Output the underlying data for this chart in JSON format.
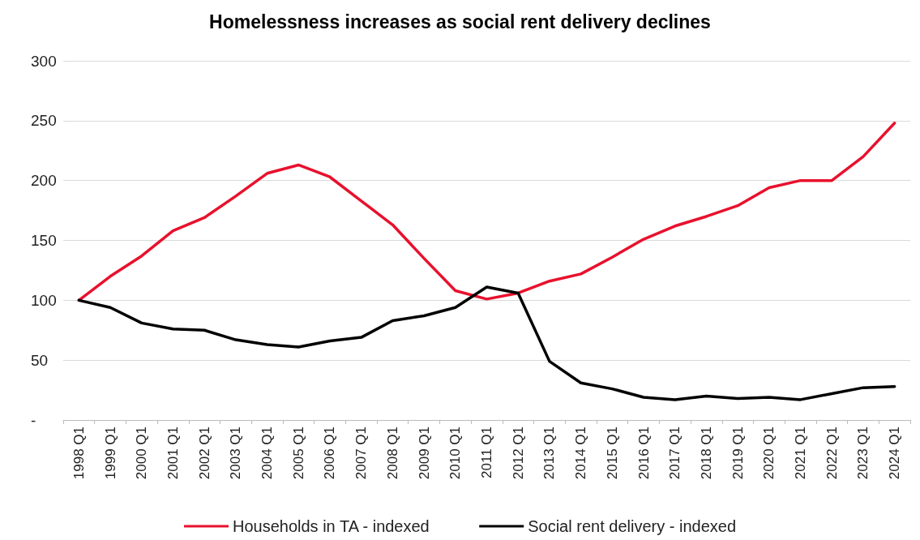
{
  "chart_data": {
    "type": "line",
    "title": "Homelessness increases as social rent delivery declines",
    "categories": [
      "1998 Q1",
      "1999 Q1",
      "2000 Q1",
      "2001 Q1",
      "2002 Q1",
      "2003 Q1",
      "2004 Q1",
      "2005 Q1",
      "2006 Q1",
      "2007 Q1",
      "2008 Q1",
      "2009 Q1",
      "2010 Q1",
      "2011 Q1",
      "2012 Q1",
      "2013 Q1",
      "2014 Q1",
      "2015 Q1",
      "2016 Q1",
      "2017 Q1",
      "2018 Q1",
      "2019 Q1",
      "2020 Q1",
      "2021 Q1",
      "2022 Q1",
      "2023 Q1",
      "2024 Q1"
    ],
    "series": [
      {
        "name": "Households in TA - indexed",
        "color": "#e8112d",
        "values": [
          100,
          120,
          137,
          158,
          169,
          187,
          206,
          213,
          203,
          183,
          163,
          135,
          108,
          101,
          106,
          116,
          122,
          136,
          151,
          162,
          170,
          179,
          194,
          200,
          200,
          220,
          248
        ]
      },
      {
        "name": "Social rent delivery - indexed",
        "color": "#000000",
        "values": [
          100,
          94,
          81,
          76,
          75,
          67,
          63,
          61,
          66,
          69,
          83,
          87,
          94,
          111,
          106,
          49,
          31,
          26,
          19,
          17,
          20,
          18,
          19,
          17,
          22,
          27,
          28
        ]
      }
    ],
    "ylim": [
      0,
      300
    ],
    "yticks": [
      {
        "value": 0,
        "label": "-"
      },
      50,
      100,
      150,
      200,
      250,
      300
    ],
    "grid": "y",
    "legend": "bottom",
    "marker": "none",
    "line_style": "solid"
  }
}
